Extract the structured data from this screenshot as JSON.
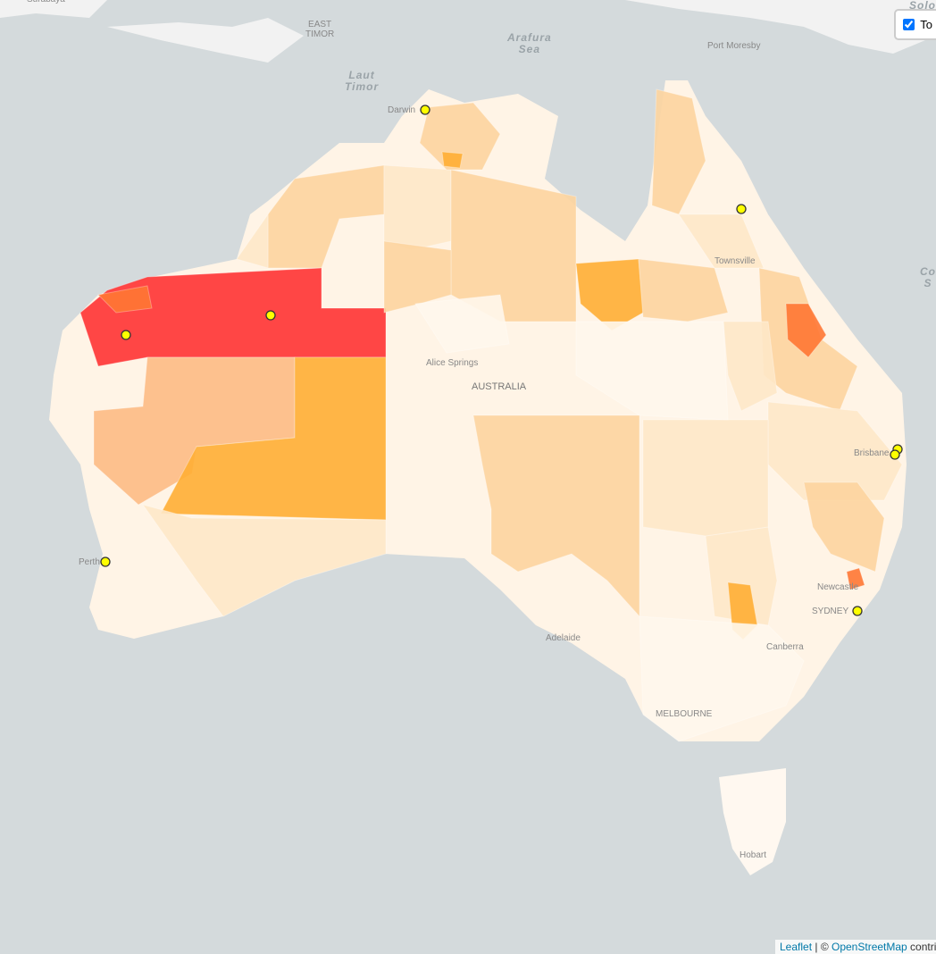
{
  "map": {
    "labels": [
      {
        "name": "surabaya",
        "text": "Surabaya"
      },
      {
        "name": "east-timor",
        "text": "EAST\nTIMOR"
      },
      {
        "name": "darwin",
        "text": "Darwin"
      },
      {
        "name": "port-moresby",
        "text": "Port Moresby"
      },
      {
        "name": "townsville",
        "text": "Townsville"
      },
      {
        "name": "alice-springs",
        "text": "Alice Springs"
      },
      {
        "name": "australia",
        "text": "AUSTRALIA"
      },
      {
        "name": "perth",
        "text": "Perth"
      },
      {
        "name": "adelaide",
        "text": "Adelaide"
      },
      {
        "name": "brisbane",
        "text": "Brisbane"
      },
      {
        "name": "newcastle",
        "text": "Newcastle"
      },
      {
        "name": "sydney",
        "text": "SYDNEY"
      },
      {
        "name": "canberra",
        "text": "Canberra"
      },
      {
        "name": "melbourne",
        "text": "MELBOURNE"
      },
      {
        "name": "hobart",
        "text": "Hobart"
      }
    ],
    "seas": [
      {
        "name": "arafura-sea",
        "text": "Arafura\nSea"
      },
      {
        "name": "laut-timor",
        "text": "Laut\nTimor"
      },
      {
        "name": "coral-sea",
        "text": "Co\nS"
      },
      {
        "name": "solomon-sea",
        "text": "Solo"
      }
    ],
    "choropleth_colors": [
      "#fff7ec",
      "#fee8c8",
      "#fdd49e",
      "#fdbb84",
      "#ffae34",
      "#ff7733",
      "#ff3333"
    ],
    "marker_color": "#ffff00"
  },
  "layer_control": {
    "label": "To",
    "checked": true
  },
  "attribution": {
    "leaflet": "Leaflet",
    "separator": " | © ",
    "osm": "OpenStreetMap",
    "suffix": " contributors"
  }
}
